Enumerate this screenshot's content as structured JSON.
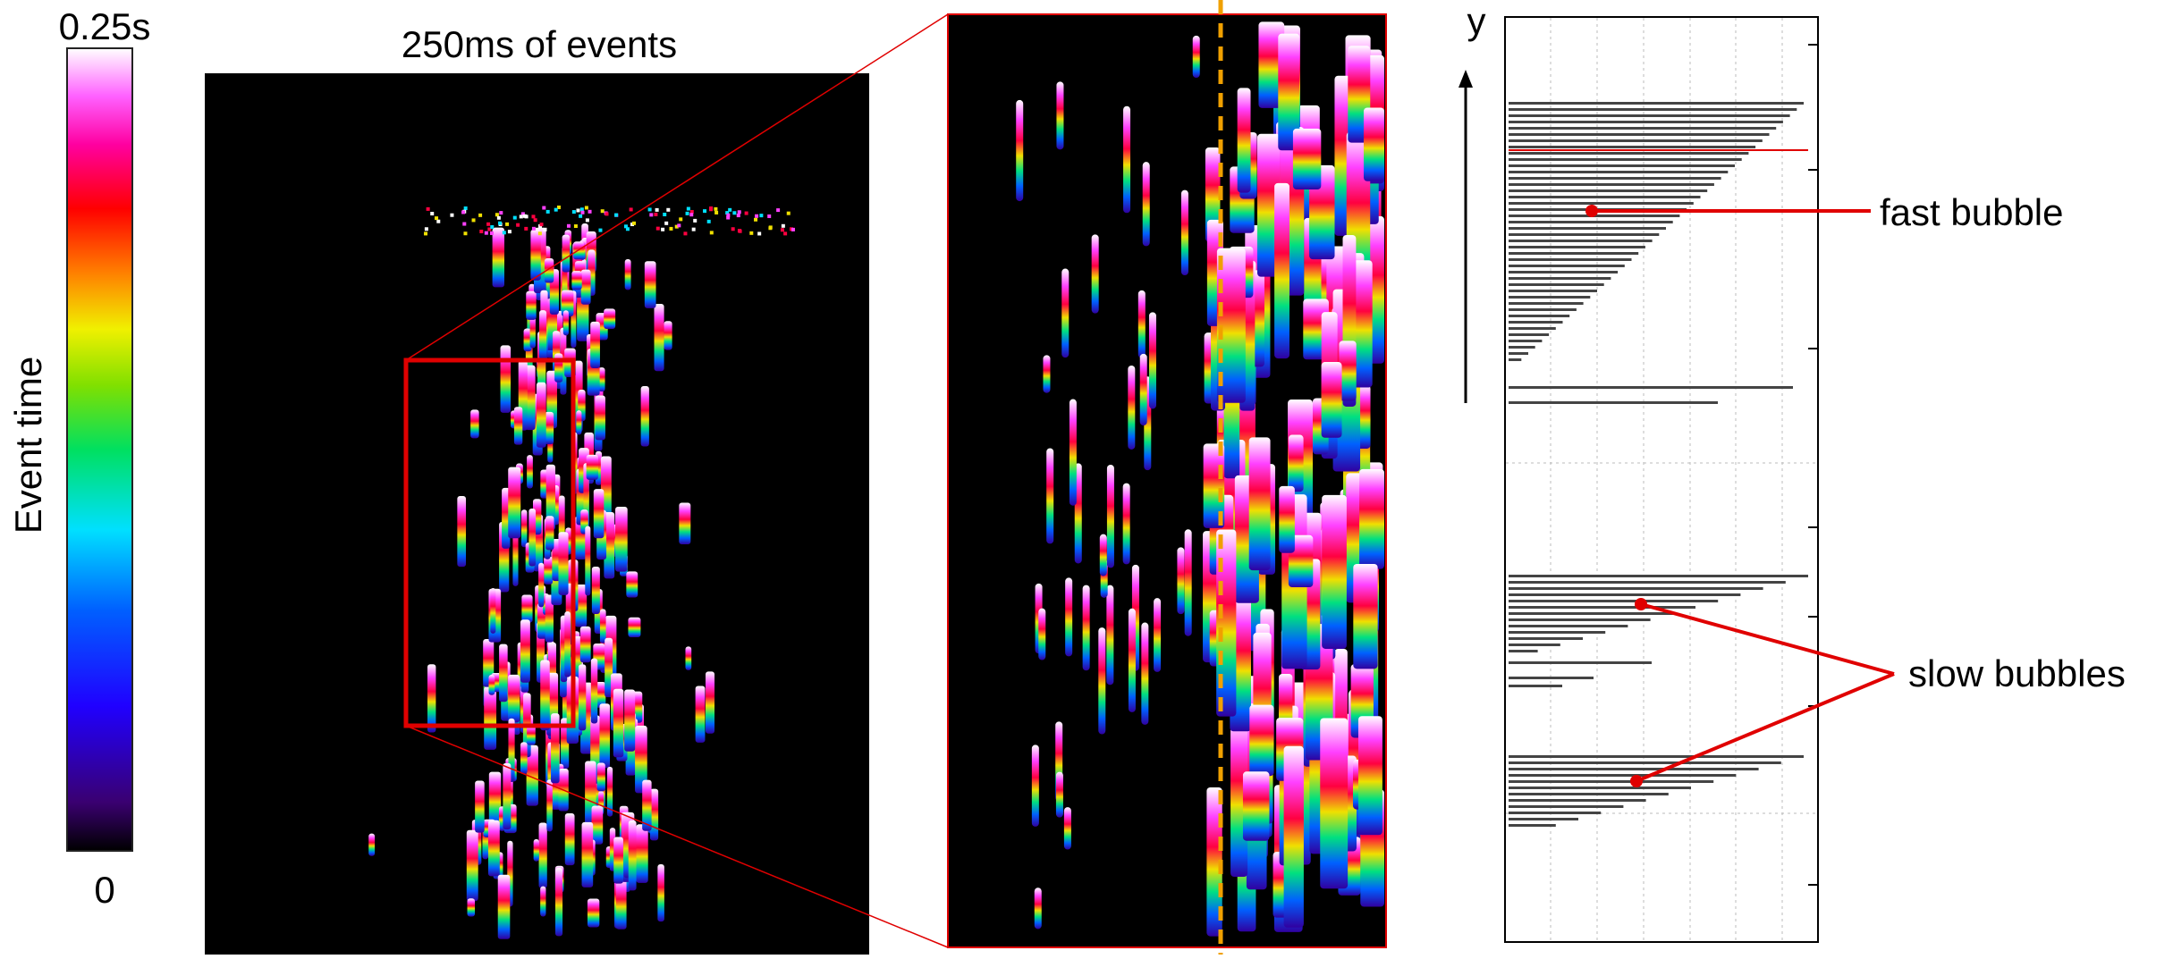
{
  "colorbar": {
    "max_label": "0.25s",
    "min_label": "0",
    "title": "Event time"
  },
  "event_image": {
    "title": "250ms of events"
  },
  "histogram": {
    "axis_label": "y"
  },
  "annotations": [
    "fast bubble",
    "slow bubbles"
  ]
}
